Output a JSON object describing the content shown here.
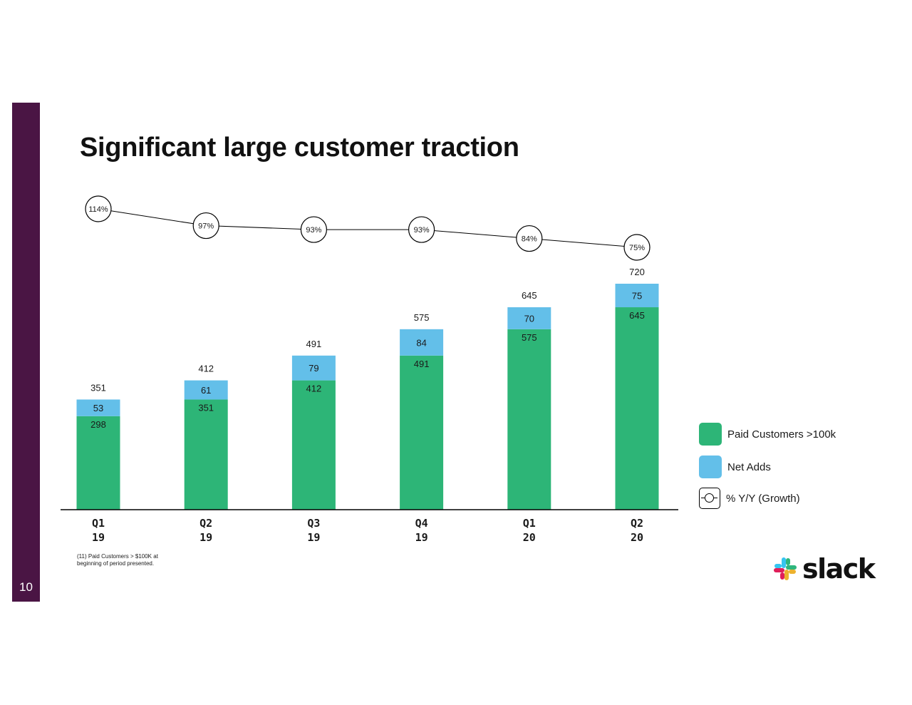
{
  "title": "Significant large customer traction",
  "page_number": "10",
  "footnote": "(11) Paid Customers > $100K at beginning of period presented.",
  "logo_text": "slack",
  "legend": {
    "paid": "Paid Customers >100k",
    "net": "Net Adds",
    "growth": "% Y/Y (Growth)"
  },
  "colors": {
    "paid": "#2db577",
    "net": "#63bfe9",
    "sidebar": "#4a1544"
  },
  "chart_data": {
    "type": "bar",
    "stacked": true,
    "categories": [
      [
        "Q1",
        "19"
      ],
      [
        "Q2",
        "19"
      ],
      [
        "Q3",
        "19"
      ],
      [
        "Q4",
        "19"
      ],
      [
        "Q1",
        "20"
      ],
      [
        "Q2",
        "20"
      ]
    ],
    "series": [
      {
        "name": "Paid Customers >100k",
        "values": [
          298,
          351,
          412,
          491,
          575,
          645
        ]
      },
      {
        "name": "Net Adds",
        "values": [
          53,
          61,
          79,
          84,
          70,
          75
        ]
      }
    ],
    "totals": [
      351,
      412,
      491,
      575,
      645,
      720
    ],
    "growth_line": {
      "name": "% Y/Y (Growth)",
      "values": [
        114,
        97,
        93,
        93,
        84,
        75
      ],
      "labels": [
        "114%",
        "97%",
        "93%",
        "93%",
        "84%",
        "75%"
      ]
    },
    "ylim": [
      0,
      720
    ],
    "grid": false,
    "legend_position": "right"
  }
}
